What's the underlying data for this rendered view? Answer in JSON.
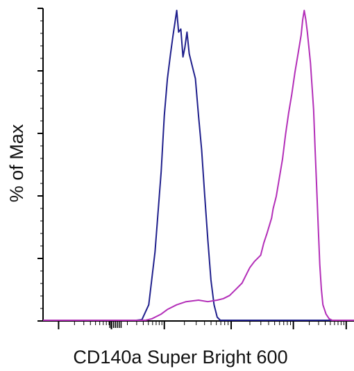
{
  "chart_data": {
    "type": "line",
    "title": "",
    "xlabel": "CD140a Super Bright 600",
    "ylabel": "% of Max",
    "x_scale": "log (biexponential)",
    "x_tick_labels": [],
    "y_tick_labels": [],
    "ylim": [
      0,
      100
    ],
    "grid": false,
    "legend": "none",
    "series": [
      {
        "color": "#1f1f8c",
        "points": [
          [
            0.0,
            0
          ],
          [
            0.3,
            0
          ],
          [
            0.318,
            0.2
          ],
          [
            0.34,
            5
          ],
          [
            0.36,
            22
          ],
          [
            0.38,
            48
          ],
          [
            0.39,
            66
          ],
          [
            0.4,
            78
          ],
          [
            0.41,
            86
          ],
          [
            0.418,
            92
          ],
          [
            0.424,
            96
          ],
          [
            0.43,
            100
          ],
          [
            0.436,
            93
          ],
          [
            0.443,
            94
          ],
          [
            0.45,
            85
          ],
          [
            0.456,
            88
          ],
          [
            0.463,
            93
          ],
          [
            0.47,
            86
          ],
          [
            0.48,
            82
          ],
          [
            0.49,
            78
          ],
          [
            0.5,
            66
          ],
          [
            0.51,
            55
          ],
          [
            0.52,
            40
          ],
          [
            0.53,
            26
          ],
          [
            0.54,
            13
          ],
          [
            0.55,
            5
          ],
          [
            0.56,
            1
          ],
          [
            0.57,
            0
          ],
          [
            1.0,
            0
          ]
        ]
      },
      {
        "color": "#b32eb8",
        "points": [
          [
            0.0,
            0
          ],
          [
            0.33,
            0
          ],
          [
            0.35,
            0.5
          ],
          [
            0.38,
            2
          ],
          [
            0.4,
            3.5
          ],
          [
            0.43,
            5
          ],
          [
            0.46,
            6
          ],
          [
            0.5,
            6.5
          ],
          [
            0.53,
            6
          ],
          [
            0.56,
            6.5
          ],
          [
            0.58,
            7
          ],
          [
            0.6,
            8
          ],
          [
            0.62,
            10
          ],
          [
            0.64,
            12
          ],
          [
            0.655,
            15
          ],
          [
            0.665,
            17
          ],
          [
            0.68,
            19
          ],
          [
            0.7,
            21
          ],
          [
            0.71,
            25
          ],
          [
            0.72,
            28
          ],
          [
            0.735,
            33
          ],
          [
            0.74,
            36
          ],
          [
            0.75,
            40
          ],
          [
            0.76,
            46
          ],
          [
            0.77,
            52
          ],
          [
            0.78,
            60
          ],
          [
            0.79,
            67
          ],
          [
            0.8,
            73
          ],
          [
            0.81,
            80
          ],
          [
            0.82,
            86
          ],
          [
            0.83,
            92
          ],
          [
            0.835,
            97
          ],
          [
            0.84,
            100
          ],
          [
            0.845,
            97
          ],
          [
            0.85,
            93
          ],
          [
            0.86,
            83
          ],
          [
            0.87,
            68
          ],
          [
            0.875,
            55
          ],
          [
            0.88,
            43
          ],
          [
            0.885,
            30
          ],
          [
            0.89,
            18
          ],
          [
            0.895,
            10
          ],
          [
            0.9,
            5
          ],
          [
            0.91,
            2
          ],
          [
            0.92,
            0.5
          ],
          [
            0.93,
            0
          ],
          [
            1.0,
            0
          ]
        ]
      }
    ]
  }
}
